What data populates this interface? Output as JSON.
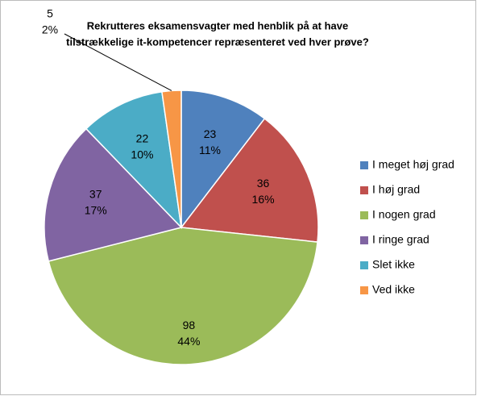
{
  "chart_data": {
    "type": "pie",
    "title": [
      "Rekrutteres eksamensvagter med henblik på at have",
      "tilstrækkelige it-kompetencer repræsenteret ved hver prøve?"
    ],
    "categories": [
      "I meget høj grad",
      "I høj grad",
      "I nogen grad",
      "I ringe grad",
      "Slet ikke",
      "Ved ikke"
    ],
    "values": [
      23,
      36,
      98,
      37,
      22,
      5
    ],
    "percent_labels": [
      "11%",
      "16%",
      "44%",
      "17%",
      "10%",
      "2%"
    ],
    "colors": [
      "#4f81bd",
      "#c0504d",
      "#9bbb59",
      "#8064a2",
      "#4bacc6",
      "#f79646"
    ],
    "legend": "right"
  }
}
